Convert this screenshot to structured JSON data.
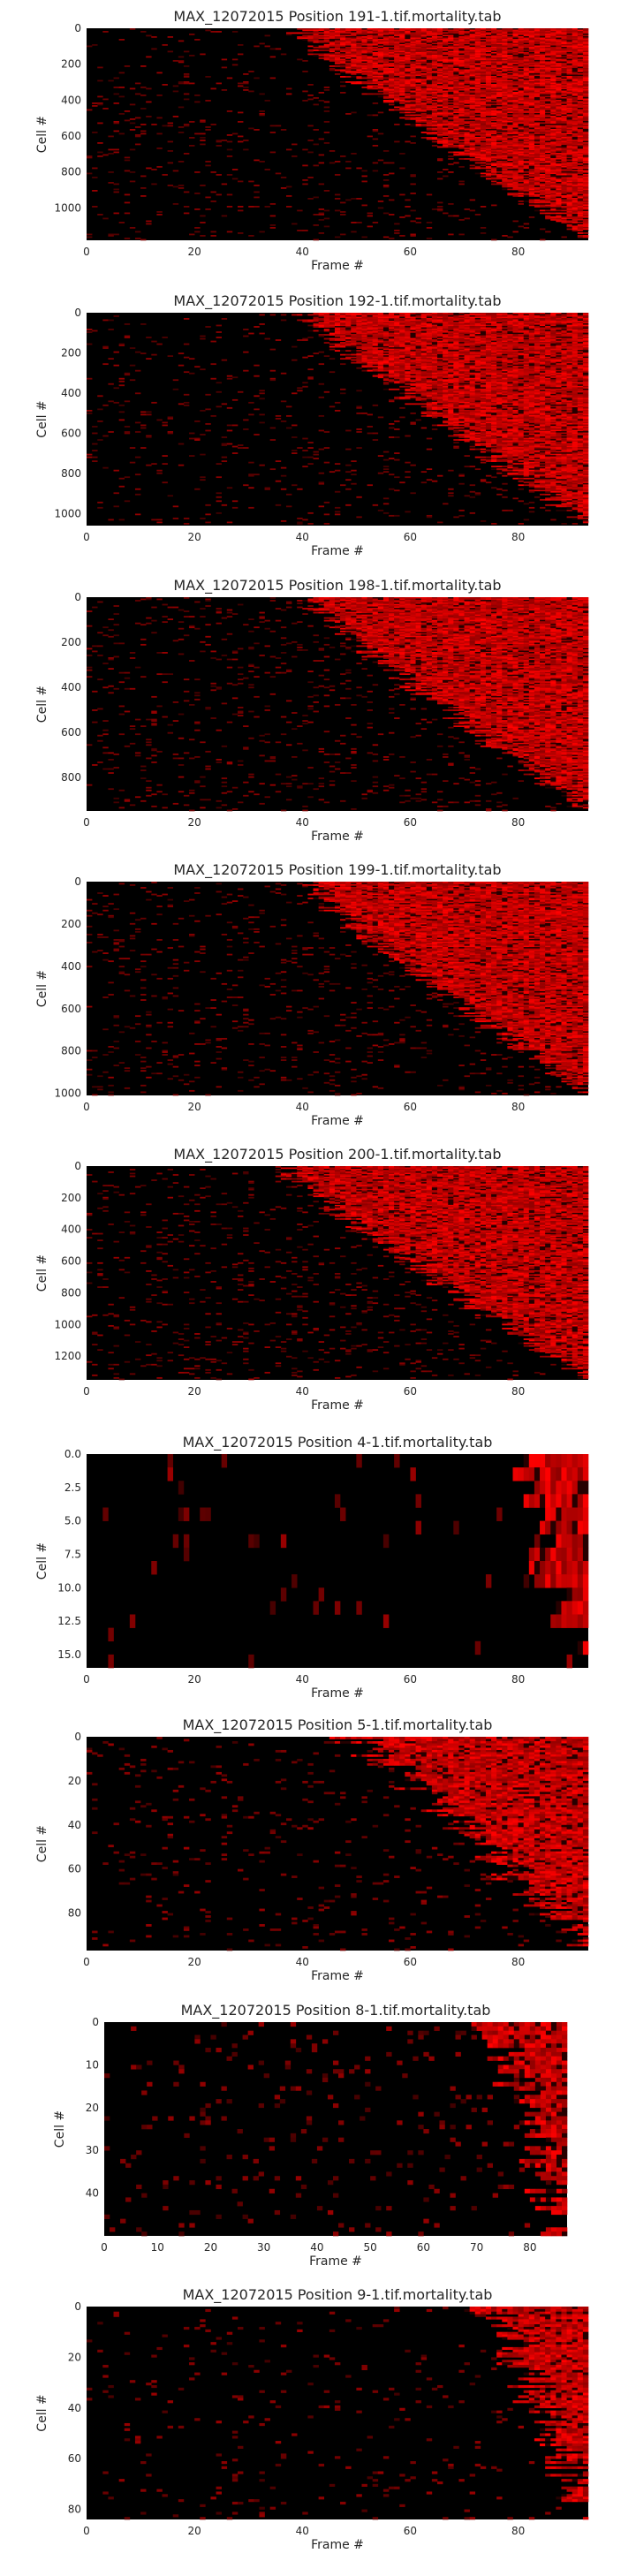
{
  "figure": {
    "colormap": [
      "#000000",
      "#ff0000"
    ],
    "background": "#ffffff"
  },
  "chart_data": [
    {
      "type": "heatmap",
      "title": "MAX_12072015 Position 191-1.tif.mortality.tab",
      "xlabel": "Frame #",
      "ylabel": "Cell #",
      "xlim": [
        0,
        93
      ],
      "ylim": [
        0,
        1180
      ],
      "xticks": [
        0,
        20,
        40,
        60,
        80
      ],
      "yticks": [
        "0",
        "200",
        "400",
        "600",
        "800",
        "1000"
      ],
      "yvals": [
        0,
        200,
        400,
        600,
        800,
        1000
      ],
      "grid": false,
      "legend": "none",
      "onset_start_frame": 38,
      "onset_end_frame": 93,
      "noise": 0.05
    },
    {
      "type": "heatmap",
      "title": "MAX_12072015 Position 192-1.tif.mortality.tab",
      "xlabel": "Frame #",
      "ylabel": "Cell #",
      "xlim": [
        0,
        93
      ],
      "ylim": [
        0,
        1060
      ],
      "xticks": [
        0,
        20,
        40,
        60,
        80
      ],
      "yticks": [
        "0",
        "200",
        "400",
        "600",
        "800",
        "1000"
      ],
      "yvals": [
        0,
        200,
        400,
        600,
        800,
        1000
      ],
      "grid": false,
      "legend": "none",
      "onset_start_frame": 40,
      "onset_end_frame": 93,
      "noise": 0.05
    },
    {
      "type": "heatmap",
      "title": "MAX_12072015 Position 198-1.tif.mortality.tab",
      "xlabel": "Frame #",
      "ylabel": "Cell #",
      "xlim": [
        0,
        93
      ],
      "ylim": [
        0,
        950
      ],
      "xticks": [
        0,
        20,
        40,
        60,
        80
      ],
      "yticks": [
        "0",
        "200",
        "400",
        "600",
        "800"
      ],
      "yvals": [
        0,
        200,
        400,
        600,
        800
      ],
      "grid": false,
      "legend": "none",
      "onset_start_frame": 40,
      "onset_end_frame": 93,
      "noise": 0.06
    },
    {
      "type": "heatmap",
      "title": "MAX_12072015 Position 199-1.tif.mortality.tab",
      "xlabel": "Frame #",
      "ylabel": "Cell #",
      "xlim": [
        0,
        93
      ],
      "ylim": [
        0,
        1010
      ],
      "xticks": [
        0,
        20,
        40,
        60,
        80
      ],
      "yticks": [
        "0",
        "200",
        "400",
        "600",
        "800",
        "1000"
      ],
      "yvals": [
        0,
        200,
        400,
        600,
        800,
        1000
      ],
      "grid": false,
      "legend": "none",
      "onset_start_frame": 40,
      "onset_end_frame": 93,
      "noise": 0.06
    },
    {
      "type": "heatmap",
      "title": "MAX_12072015 Position 200-1.tif.mortality.tab",
      "xlabel": "Frame #",
      "ylabel": "Cell #",
      "xlim": [
        0,
        93
      ],
      "ylim": [
        0,
        1350
      ],
      "xticks": [
        0,
        20,
        40,
        60,
        80
      ],
      "yticks": [
        "0",
        "200",
        "400",
        "600",
        "800",
        "1000",
        "1200"
      ],
      "yvals": [
        0,
        200,
        400,
        600,
        800,
        1000,
        1200
      ],
      "grid": false,
      "legend": "none",
      "onset_start_frame": 36,
      "onset_end_frame": 93,
      "noise": 0.06
    },
    {
      "type": "heatmap",
      "title": "MAX_12072015 Position 4-1.tif.mortality.tab",
      "xlabel": "Frame #",
      "ylabel": "Cell #",
      "xlim": [
        0,
        93
      ],
      "ylim": [
        0,
        16
      ],
      "xticks": [
        0,
        20,
        40,
        60,
        80
      ],
      "yticks": [
        "0.0",
        "2.5",
        "5.0",
        "7.5",
        "10.0",
        "12.5",
        "15.0"
      ],
      "yvals": [
        0,
        2.5,
        5,
        7.5,
        10,
        12.5,
        15
      ],
      "grid": false,
      "legend": "none",
      "onset_start_frame": 76,
      "onset_end_frame": 92,
      "noise": 0.03
    },
    {
      "type": "heatmap",
      "title": "MAX_12072015 Position 5-1.tif.mortality.tab",
      "xlabel": "Frame #",
      "ylabel": "Cell #",
      "xlim": [
        0,
        93
      ],
      "ylim": [
        0,
        97
      ],
      "xticks": [
        0,
        20,
        40,
        60,
        80
      ],
      "yticks": [
        "0",
        "20",
        "40",
        "60",
        "80"
      ],
      "yvals": [
        0,
        20,
        40,
        60,
        80
      ],
      "grid": false,
      "legend": "none",
      "onset_start_frame": 49,
      "onset_end_frame": 93,
      "noise": 0.05
    },
    {
      "type": "heatmap",
      "title": "MAX_12072015 Position 8-1.tif.mortality.tab",
      "xlabel": "Frame #",
      "ylabel": "Cell #",
      "xlim": [
        0,
        87
      ],
      "ylim": [
        0,
        50
      ],
      "xticks": [
        0,
        10,
        20,
        30,
        40,
        50,
        60,
        70,
        80
      ],
      "yticks": [
        "0",
        "10",
        "20",
        "30",
        "40"
      ],
      "yvals": [
        0,
        10,
        20,
        30,
        40
      ],
      "grid": false,
      "legend": "none",
      "onset_start_frame": 72,
      "onset_end_frame": 86,
      "noise": 0.05
    },
    {
      "type": "heatmap",
      "title": "MAX_12072015 Position 9-1.tif.mortality.tab",
      "xlabel": "Frame #",
      "ylabel": "Cell #",
      "xlim": [
        0,
        93
      ],
      "ylim": [
        0,
        84
      ],
      "xticks": [
        0,
        20,
        40,
        60,
        80
      ],
      "yticks": [
        "0",
        "20",
        "40",
        "60",
        "80"
      ],
      "yvals": [
        0,
        20,
        40,
        60,
        80
      ],
      "grid": false,
      "legend": "none",
      "onset_start_frame": 74,
      "onset_end_frame": 93,
      "noise": 0.04
    }
  ]
}
